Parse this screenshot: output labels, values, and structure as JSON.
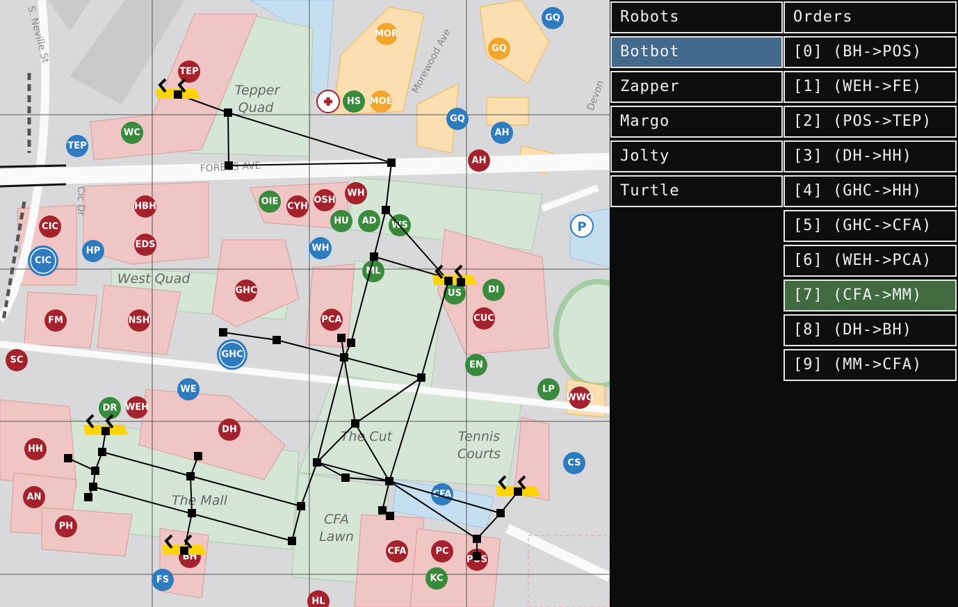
{
  "panel": {
    "robots_header": "Robots",
    "orders_header": "Orders",
    "robots": [
      "Botbot",
      "Zapper",
      "Margo",
      "Jolty",
      "Turtle"
    ],
    "selected_robot": "Botbot",
    "orders": [
      "[0] (BH->POS)",
      "[1] (WEH->FE)",
      "[2] (POS->TEP)",
      "[3] (DH->HH)",
      "[4] (GHC->HH)",
      "[5] (GHC->CFA)",
      "[6] (WEH->PCA)",
      "[7] (CFA->MM)",
      "[8] (DH->BH)",
      "[9] (MM->CFA)"
    ],
    "selected_order": "[7] (CFA->MM)",
    "colors": {
      "robot_selected": "#436a8c",
      "order_selected": "#416a41",
      "background": "#0c0c0c"
    }
  },
  "map": {
    "area_labels": [
      "Tepper",
      "Quad",
      "West Quad",
      "The Cut",
      "Tennis",
      "Courts",
      "The Mall",
      "CFA",
      "Lawn"
    ],
    "streets": [
      "FORBES AVE",
      "S. Neville St",
      "Morewood Ave",
      "Devon",
      "Cic Dr"
    ],
    "colors": {
      "academic": "#a3222c",
      "student": "#3a8a3e",
      "admin": "#2f7bbf",
      "housing": "#f2a42b",
      "robot": "#ffd400",
      "path": "#000000"
    },
    "pois": [
      {
        "label": "TEP",
        "type": "academic"
      },
      {
        "label": "WC",
        "type": "student"
      },
      {
        "label": "TEP",
        "type": "admin"
      },
      {
        "label": "HS",
        "type": "student"
      },
      {
        "label": "MOE",
        "type": "housing"
      },
      {
        "label": "MOR",
        "type": "housing"
      },
      {
        "label": "GQ",
        "type": "housing"
      },
      {
        "label": "GQ",
        "type": "admin"
      },
      {
        "label": "GQ",
        "type": "admin"
      },
      {
        "label": "AH",
        "type": "admin"
      },
      {
        "label": "AH",
        "type": "academic"
      },
      {
        "label": "OIE",
        "type": "student"
      },
      {
        "label": "CYH",
        "type": "academic"
      },
      {
        "label": "OSH",
        "type": "academic"
      },
      {
        "label": "WH",
        "type": "academic"
      },
      {
        "label": "HU",
        "type": "student"
      },
      {
        "label": "AD",
        "type": "student"
      },
      {
        "label": "WS",
        "type": "student"
      },
      {
        "label": "WH",
        "type": "admin"
      },
      {
        "label": "HBH",
        "type": "academic"
      },
      {
        "label": "CIC",
        "type": "academic"
      },
      {
        "label": "EDS",
        "type": "academic"
      },
      {
        "label": "HP",
        "type": "admin"
      },
      {
        "label": "CIC",
        "type": "admin"
      },
      {
        "label": "ML",
        "type": "student"
      },
      {
        "label": "US",
        "type": "student"
      },
      {
        "label": "DI",
        "type": "student"
      },
      {
        "label": "GHC",
        "type": "academic"
      },
      {
        "label": "FM",
        "type": "academic"
      },
      {
        "label": "NSH",
        "type": "academic"
      },
      {
        "label": "PCA",
        "type": "academic"
      },
      {
        "label": "CUC",
        "type": "academic"
      },
      {
        "label": "SC",
        "type": "academic"
      },
      {
        "label": "GHC",
        "type": "admin"
      },
      {
        "label": "EN",
        "type": "student"
      },
      {
        "label": "WE",
        "type": "admin"
      },
      {
        "label": "LP",
        "type": "student"
      },
      {
        "label": "WWG",
        "type": "academic"
      },
      {
        "label": "DR",
        "type": "student"
      },
      {
        "label": "WEH",
        "type": "academic"
      },
      {
        "label": "DH",
        "type": "academic"
      },
      {
        "label": "HH",
        "type": "academic"
      },
      {
        "label": "CS",
        "type": "admin"
      },
      {
        "label": "AN",
        "type": "academic"
      },
      {
        "label": "CFA",
        "type": "admin"
      },
      {
        "label": "PH",
        "type": "academic"
      },
      {
        "label": "CFA",
        "type": "academic"
      },
      {
        "label": "PC",
        "type": "academic"
      },
      {
        "label": "POS",
        "type": "academic"
      },
      {
        "label": "BH",
        "type": "academic"
      },
      {
        "label": "KC",
        "type": "student"
      },
      {
        "label": "FS",
        "type": "admin"
      },
      {
        "label": "HL",
        "type": "academic"
      }
    ],
    "parking_label": "P"
  }
}
